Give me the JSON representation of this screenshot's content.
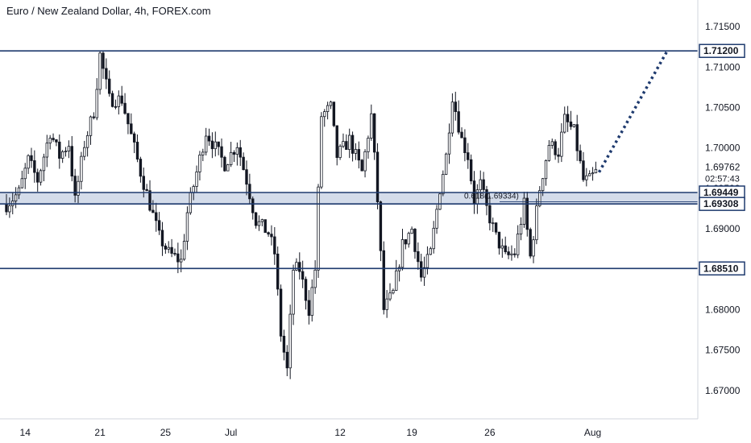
{
  "chart_data": {
    "type": "candlestick",
    "title": "Euro / New Zealand Dollar, 4h, FOREX.com",
    "ylim": [
      1.6665,
      1.7178
    ],
    "y_ticks": [
      "1.67000",
      "1.67500",
      "1.68000",
      "1.68500",
      "1.69000",
      "1.69500",
      "1.70000",
      "1.70500",
      "1.71000",
      "1.71500"
    ],
    "y_tick_values": [
      1.67,
      1.675,
      1.68,
      1.685,
      1.69,
      1.695,
      1.7,
      1.705,
      1.71,
      1.715
    ],
    "x_ticks": [
      "14",
      "21",
      "25",
      "Jul",
      "12",
      "19",
      "26",
      "Aug"
    ],
    "x_tick_bars": [
      6,
      30,
      51,
      72,
      107,
      130,
      155,
      188
    ],
    "bars_total": 205,
    "levels": [
      {
        "value": 1.712,
        "label": "1.71200"
      },
      {
        "value": 1.69449,
        "label": "1.69449"
      },
      {
        "value": 1.69308,
        "label": "1.69308"
      },
      {
        "value": 1.6851,
        "label": "1.68510"
      }
    ],
    "zone": [
      1.69308,
      1.69449
    ],
    "current_price": {
      "value": 1.69762,
      "label": "1.69762",
      "countdown": "02:57:43"
    },
    "fib_label": "0.618(1.69334)",
    "fib_value": 1.69334,
    "projection_end": 1.712,
    "anchors": [
      [
        0,
        1.693
      ],
      [
        4,
        1.6945
      ],
      [
        7,
        1.6985
      ],
      [
        10,
        1.696
      ],
      [
        14,
        1.702
      ],
      [
        17,
        1.699
      ],
      [
        20,
        1.7005
      ],
      [
        22,
        1.6935
      ],
      [
        25,
        1.7005
      ],
      [
        28,
        1.7045
      ],
      [
        30,
        1.7115
      ],
      [
        33,
        1.706
      ],
      [
        37,
        1.706
      ],
      [
        40,
        1.7015
      ],
      [
        43,
        1.697
      ],
      [
        46,
        1.693
      ],
      [
        49,
        1.689
      ],
      [
        52,
        1.687
      ],
      [
        56,
        1.686
      ],
      [
        58,
        1.692
      ],
      [
        61,
        1.697
      ],
      [
        64,
        1.702
      ],
      [
        67,
        1.7
      ],
      [
        70,
        1.698
      ],
      [
        74,
        1.7005
      ],
      [
        77,
        1.696
      ],
      [
        80,
        1.691
      ],
      [
        84,
        1.6895
      ],
      [
        86,
        1.687
      ],
      [
        88,
        1.677
      ],
      [
        90,
        1.6725
      ],
      [
        92,
        1.685
      ],
      [
        94,
        1.685
      ],
      [
        97,
        1.68
      ],
      [
        99,
        1.685
      ],
      [
        101,
        1.704
      ],
      [
        104,
        1.705
      ],
      [
        106,
        1.699
      ],
      [
        110,
        1.701
      ],
      [
        114,
        1.697
      ],
      [
        117,
        1.704
      ],
      [
        119,
        1.6935
      ],
      [
        121,
        1.68
      ],
      [
        124,
        1.682
      ],
      [
        127,
        1.688
      ],
      [
        130,
        1.69
      ],
      [
        133,
        1.684
      ],
      [
        136,
        1.687
      ],
      [
        139,
        1.695
      ],
      [
        141,
        1.699
      ],
      [
        143,
        1.7065
      ],
      [
        146,
        1.701
      ],
      [
        148,
        1.699
      ],
      [
        150,
        1.6935
      ],
      [
        152,
        1.6955
      ],
      [
        154,
        1.6925
      ],
      [
        157,
        1.689
      ],
      [
        160,
        1.6865
      ],
      [
        163,
        1.687
      ],
      [
        166,
        1.693
      ],
      [
        168,
        1.6865
      ],
      [
        171,
        1.695
      ],
      [
        174,
        1.7005
      ],
      [
        177,
        1.6995
      ],
      [
        179,
        1.7035
      ],
      [
        182,
        1.702
      ],
      [
        185,
        1.696
      ],
      [
        187,
        1.696
      ],
      [
        189,
        1.697
      ]
    ]
  }
}
